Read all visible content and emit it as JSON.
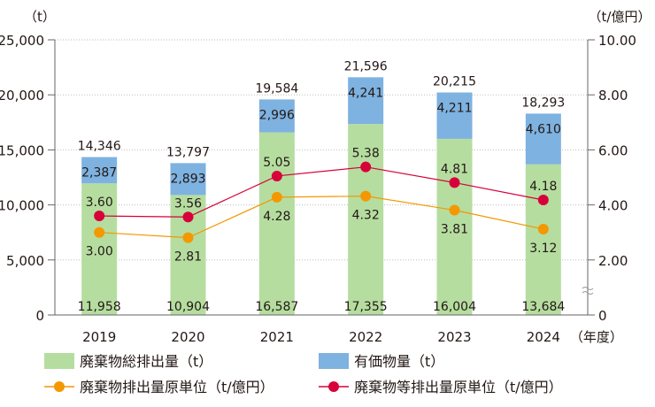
{
  "chart_data": {
    "type": "bar",
    "stacked": true,
    "categories": [
      "2019",
      "2020",
      "2021",
      "2022",
      "2023",
      "2024"
    ],
    "x_unit_label": "（年度）",
    "left_axis": {
      "unit_label": "（t）",
      "ylim": [
        0,
        25000
      ],
      "ticks": [
        "0",
        "5,000",
        "10,000",
        "15,000",
        "20,000",
        "25,000"
      ]
    },
    "right_axis": {
      "unit_label": "（t/億円）",
      "ylim": [
        0,
        10
      ],
      "ticks": [
        "0",
        "2.00",
        "4.00",
        "6.00",
        "8.00",
        "10.00"
      ],
      "axis_break": true
    },
    "grid": true,
    "series": [
      {
        "name": "廃棄物総排出量（t）",
        "kind": "bar",
        "axis": "left",
        "color": "#b5dda0",
        "values": [
          11958,
          10904,
          16587,
          17355,
          16004,
          13684
        ],
        "labels": [
          "11,958",
          "10,904",
          "16,587",
          "17,355",
          "16,004",
          "13,684"
        ]
      },
      {
        "name": "有価物量（t）",
        "kind": "bar",
        "axis": "left",
        "color": "#7eb2e0",
        "values": [
          2387,
          2893,
          2996,
          4241,
          4211,
          4610
        ],
        "labels": [
          "2,387",
          "2,893",
          "2,996",
          "4,241",
          "4,211",
          "4,610"
        ]
      },
      {
        "name": "廃棄物排出量原単位（t/億円）",
        "kind": "line",
        "axis": "right",
        "color": "#f39800",
        "values": [
          3.0,
          2.81,
          4.28,
          4.32,
          3.81,
          3.12
        ],
        "labels": [
          "3.00",
          "2.81",
          "4.28",
          "4.32",
          "3.81",
          "3.12"
        ]
      },
      {
        "name": "廃棄物等排出量原単位（t/億円）",
        "kind": "line",
        "axis": "right",
        "color": "#d7003a",
        "values": [
          3.6,
          3.56,
          5.05,
          5.38,
          4.81,
          4.18
        ],
        "labels": [
          "3.60",
          "3.56",
          "5.05",
          "5.38",
          "4.81",
          "4.18"
        ]
      }
    ],
    "totals": [
      "14,346",
      "13,797",
      "19,584",
      "21,596",
      "20,215",
      "18,293"
    ],
    "legend_placement": "bottom"
  }
}
